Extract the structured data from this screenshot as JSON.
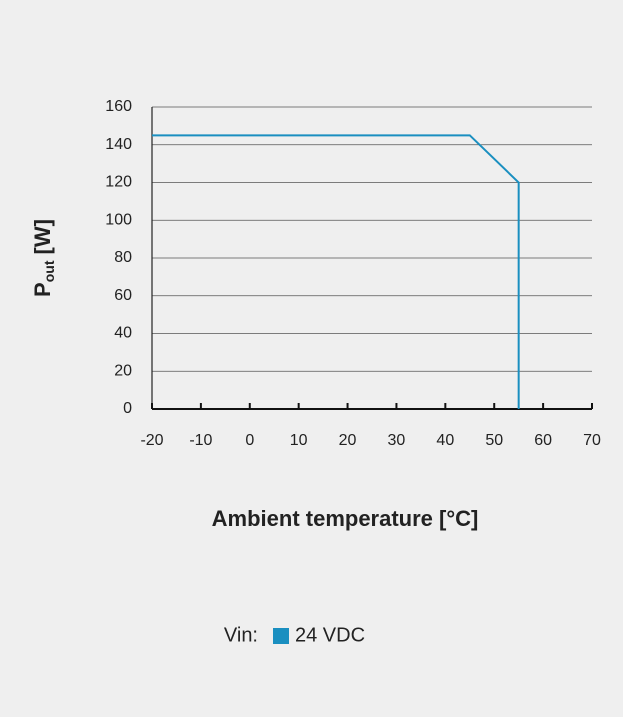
{
  "chart_data": {
    "type": "line",
    "x": [
      -20,
      45,
      55,
      55
    ],
    "series": [
      {
        "name": "24 VDC",
        "color": "#1a8fc0",
        "values": [
          145,
          145,
          120,
          0
        ]
      }
    ],
    "xlabel": "Ambient temperature [°C]",
    "ylabel": "P",
    "ylabel_sub": "out",
    "ylabel_unit": "[W]",
    "legend_title": "Vin:",
    "xlim": [
      -20,
      70
    ],
    "xticks": [
      -20,
      -10,
      0,
      10,
      20,
      30,
      40,
      50,
      60,
      70
    ],
    "ylim": [
      0,
      160
    ],
    "yticks": [
      0,
      20,
      40,
      60,
      80,
      100,
      120,
      140,
      160
    ],
    "grid": true
  }
}
